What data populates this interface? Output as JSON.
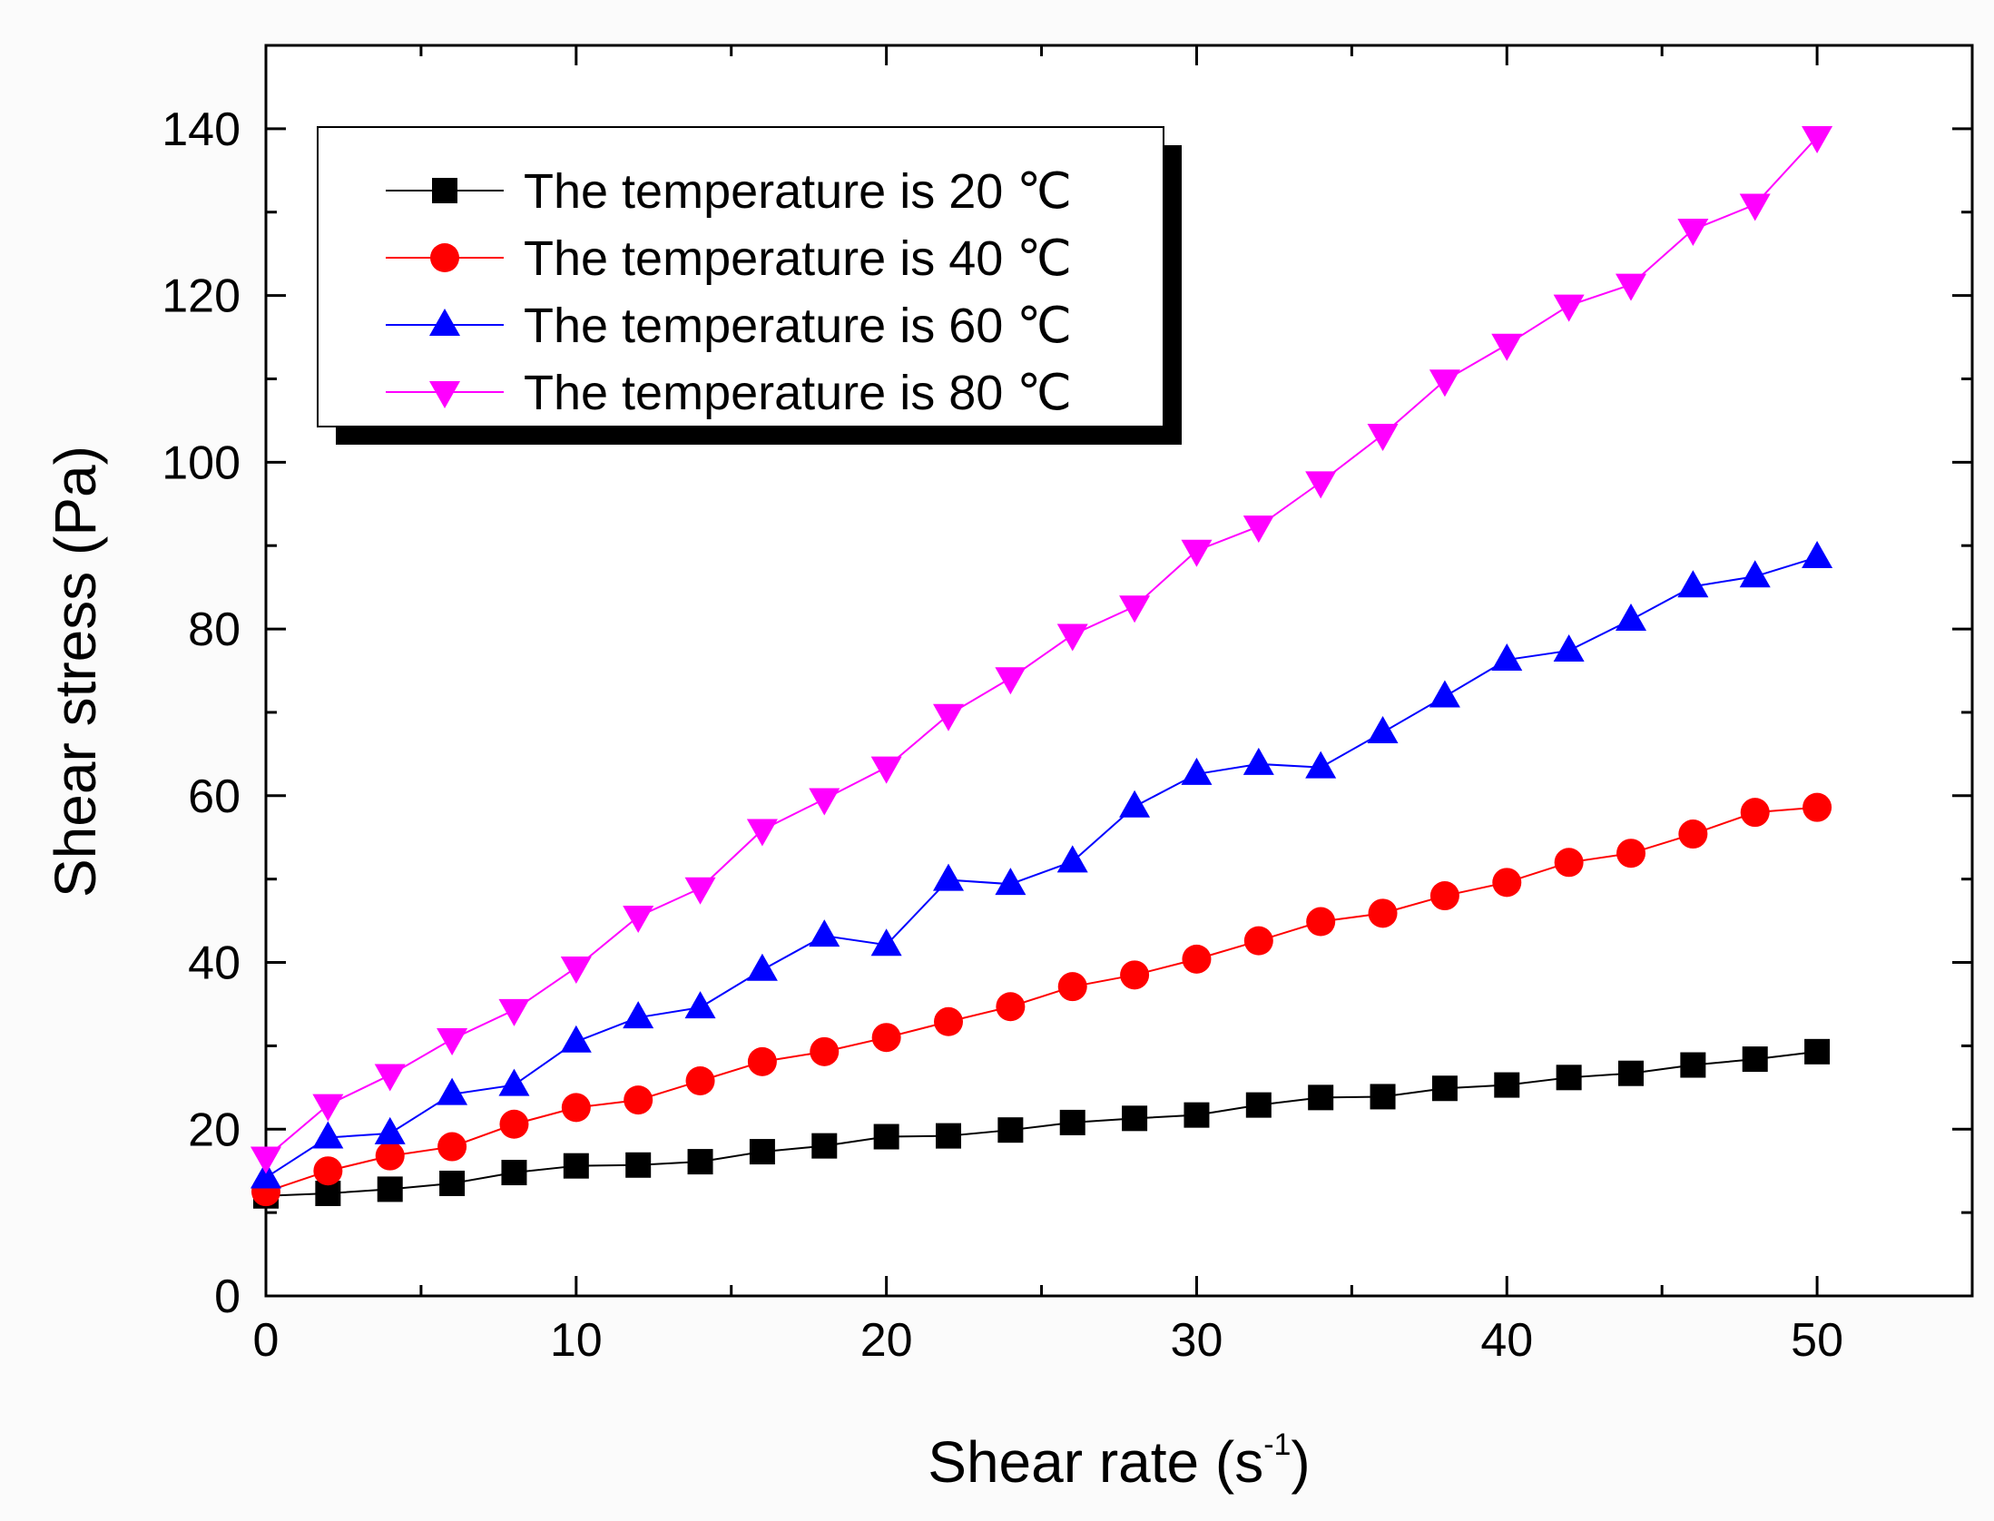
{
  "chart_data": {
    "type": "line",
    "title": "",
    "xlabel": "Shear rate (s",
    "xlabel_sup": "-1",
    "xlabel_close": ")",
    "ylabel": "Shear stress (Pa)",
    "xlim": [
      0,
      55
    ],
    "ylim": [
      0,
      150
    ],
    "xticks": [
      0,
      10,
      20,
      30,
      40,
      50
    ],
    "yticks": [
      0,
      20,
      40,
      60,
      80,
      100,
      120,
      140
    ],
    "xtick_labels": [
      "0",
      "10",
      "20",
      "30",
      "40",
      "50"
    ],
    "ytick_labels": [
      "0",
      "20",
      "40",
      "60",
      "80",
      "100",
      "120",
      "140"
    ],
    "x": [
      0,
      2,
      4,
      6,
      8,
      10,
      12,
      14,
      16,
      18,
      20,
      22,
      24,
      26,
      28,
      30,
      32,
      34,
      36,
      38,
      40,
      42,
      44,
      46,
      48,
      50
    ],
    "grid": false,
    "legend_position": "top-left",
    "series": [
      {
        "name": "The temperature is 20 ℃",
        "color": "#000000",
        "marker": "square",
        "values": [
          12,
          12.3,
          12.8,
          13.5,
          14.8,
          15.6,
          15.7,
          16.1,
          17.3,
          18,
          19.1,
          19.2,
          19.9,
          20.8,
          21.3,
          21.7,
          22.9,
          23.8,
          23.9,
          24.9,
          25.3,
          26.2,
          26.7,
          27.7,
          28.4,
          29.3
        ]
      },
      {
        "name": "The temperature is 40 ℃",
        "color": "#ff0000",
        "marker": "circle",
        "values": [
          12.5,
          15,
          16.8,
          17.9,
          20.6,
          22.6,
          23.5,
          25.8,
          28.1,
          29.3,
          31,
          32.9,
          34.7,
          37.1,
          38.5,
          40.4,
          42.6,
          44.9,
          45.9,
          48,
          49.6,
          52,
          53.1,
          55.4,
          58,
          58.6
        ]
      },
      {
        "name": "The temperature is 60 ℃",
        "color": "#0000ff",
        "marker": "triangle-up",
        "values": [
          14.2,
          19,
          19.5,
          24.2,
          25.3,
          30.5,
          33.4,
          34.6,
          39.1,
          43.2,
          42.1,
          49.9,
          49.4,
          52.1,
          58.7,
          62.6,
          63.8,
          63.4,
          67.6,
          71.9,
          76.3,
          77.4,
          81.1,
          85.1,
          86.3,
          88.6
        ]
      },
      {
        "name": "The temperature is 80 ℃",
        "color": "#ff00ff",
        "marker": "triangle-down",
        "values": [
          16.6,
          22.9,
          26.5,
          30.8,
          34.3,
          39.4,
          45.5,
          48.9,
          55.9,
          59.6,
          63.4,
          69.7,
          74.1,
          79.3,
          82.7,
          89.4,
          92.3,
          97.6,
          103.3,
          109.8,
          114.1,
          118.8,
          121.3,
          127.9,
          130.9,
          139
        ]
      }
    ]
  }
}
